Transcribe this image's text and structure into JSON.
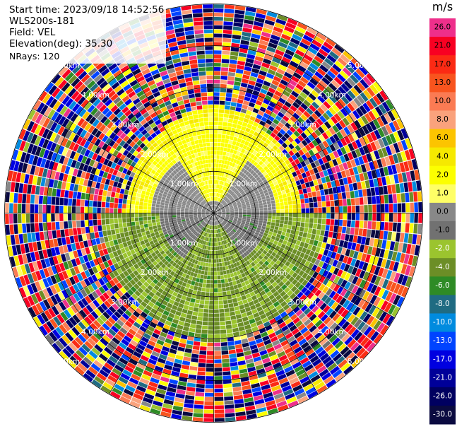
{
  "info": {
    "start_time": "Start time: 2023/09/18 14:52:56",
    "instrument": "WLS200s-181",
    "field": "Field: VEL",
    "elevation": "Elevation(deg): 35.30",
    "nrays": "NRays: 120"
  },
  "chart_data": {
    "type": "heatmap",
    "subtype": "polar-ppi",
    "n_rays": 120,
    "range_rings_km": [
      1,
      2,
      3,
      4,
      5
    ],
    "ring_labels": [
      "1.00km",
      "2.00km",
      "3.00km",
      "4.00km",
      "5.00km"
    ],
    "max_range_km": 5.0,
    "colorbar": {
      "unit": "m/s",
      "ticks": [
        26.0,
        21.0,
        17.0,
        13.0,
        10.0,
        8.0,
        6.0,
        4.0,
        2.0,
        1.0,
        0.0,
        -1.0,
        -2.0,
        -4.0,
        -6.0,
        -8.0,
        -10.0,
        -13.0,
        -17.0,
        -21.0,
        -26.0,
        -30.0
      ],
      "tick_labels": [
        "26.0",
        "21.0",
        "17.0",
        "13.0",
        "10.0",
        "8.0",
        "6.0",
        "4.0",
        "2.0",
        "1.0",
        "0.0",
        "-1.0",
        "-2.0",
        "-4.0",
        "-6.0",
        "-8.0",
        "-10.0",
        "-13.0",
        "-17.0",
        "-21.0",
        "-26.0",
        "-30.0"
      ],
      "colors": [
        "#ee2f8b",
        "#f80022",
        "#fb2a14",
        "#f8541e",
        "#fb7b53",
        "#faa27c",
        "#fcc400",
        "#f6e900",
        "#fcff00",
        "#ffff66",
        "#888888",
        "#717171",
        "#9bc42e",
        "#6c8e26",
        "#2e8b25",
        "#1f6b82",
        "#008bdf",
        "#0044ff",
        "#0000e0",
        "#000099",
        "#000060",
        "#0a0a40"
      ]
    }
  }
}
